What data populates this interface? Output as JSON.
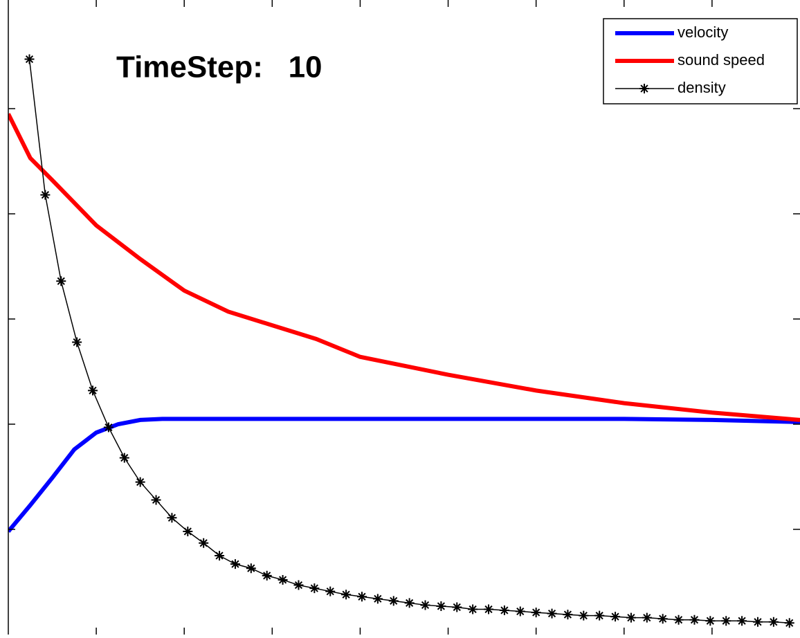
{
  "chart_data": {
    "type": "line",
    "annotation": "TimeStep:   10",
    "xlim": [
      0,
      9
    ],
    "xticks": [
      1,
      2,
      3,
      4,
      5,
      6,
      7,
      8
    ],
    "ylim": [
      0,
      6
    ],
    "yticks": [
      1,
      2,
      3,
      4,
      5
    ],
    "legend": "upper right",
    "series": [
      {
        "name": "velocity",
        "color": "#0000ff",
        "width": 6,
        "x": [
          0,
          0.25,
          0.5,
          0.75,
          1,
          1.25,
          1.5,
          1.75,
          2,
          3,
          4,
          5,
          6,
          7,
          8,
          9
        ],
        "values": [
          0.98,
          1.23,
          1.49,
          1.76,
          1.92,
          2.0,
          2.04,
          2.05,
          2.05,
          2.05,
          2.05,
          2.05,
          2.05,
          2.05,
          2.04,
          2.02
        ]
      },
      {
        "name": "sound speed",
        "color": "#ff0000",
        "width": 6,
        "x": [
          0,
          0.25,
          0.5,
          1,
          1.5,
          2,
          2.5,
          3,
          3.5,
          4,
          5,
          6,
          7,
          8,
          9
        ],
        "values": [
          4.95,
          4.53,
          4.32,
          3.89,
          3.57,
          3.27,
          3.07,
          2.94,
          2.81,
          2.64,
          2.47,
          2.32,
          2.2,
          2.11,
          2.04
        ]
      },
      {
        "name": "density",
        "color": "#000000",
        "width": 1.5,
        "marker": "*",
        "x": [
          0.24,
          0.42,
          0.6,
          0.78,
          0.96,
          1.14,
          1.32,
          1.5,
          1.68,
          1.86,
          2.04,
          2.22,
          2.4,
          2.58,
          2.76,
          2.94,
          3.12,
          3.3,
          3.48,
          3.66,
          3.84,
          4.02,
          4.2,
          4.38,
          4.56,
          4.74,
          4.92,
          5.1,
          5.28,
          5.46,
          5.64,
          5.82,
          6.0,
          6.18,
          6.36,
          6.54,
          6.72,
          6.9,
          7.08,
          7.26,
          7.44,
          7.62,
          7.8,
          7.98,
          8.16,
          8.34,
          8.52,
          8.7,
          8.88
        ],
        "values": [
          5.47,
          4.18,
          3.36,
          2.78,
          2.32,
          1.97,
          1.68,
          1.45,
          1.28,
          1.11,
          0.98,
          0.87,
          0.75,
          0.67,
          0.63,
          0.56,
          0.52,
          0.47,
          0.44,
          0.41,
          0.38,
          0.36,
          0.34,
          0.32,
          0.3,
          0.28,
          0.27,
          0.26,
          0.24,
          0.24,
          0.23,
          0.22,
          0.21,
          0.2,
          0.19,
          0.18,
          0.18,
          0.17,
          0.16,
          0.16,
          0.15,
          0.14,
          0.14,
          0.13,
          0.13,
          0.13,
          0.12,
          0.12,
          0.11
        ]
      }
    ]
  }
}
